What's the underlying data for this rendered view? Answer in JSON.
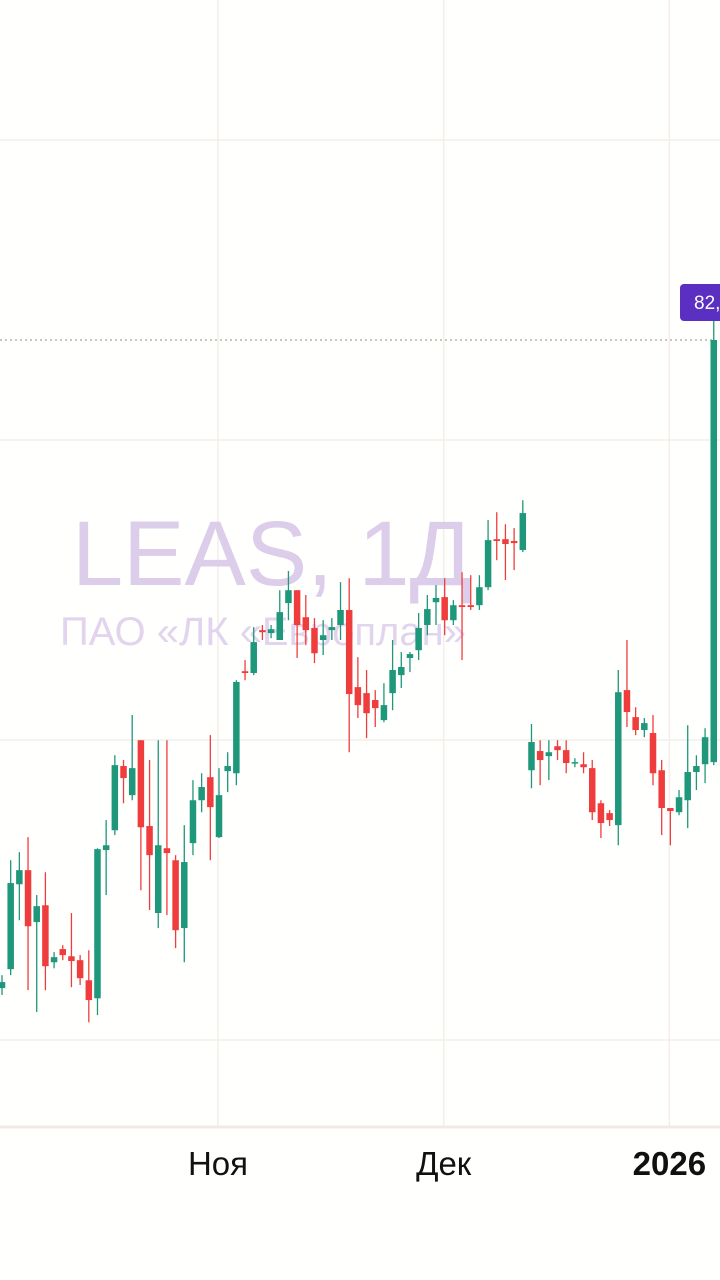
{
  "watermark": {
    "symbol": "LEAS, 1Д",
    "company": "ПАО «ЛК «Европлан»"
  },
  "colors": {
    "up": "#1f977a",
    "down": "#ef3d3d",
    "price_label": "#5a2fc2",
    "grid": "#f3eeea",
    "watermark": "#dccdea"
  },
  "chart_data": {
    "type": "candlestick",
    "title": "",
    "xlabel": "",
    "ylabel": "",
    "x_tick_labels": [
      {
        "label": "Ноя",
        "bold": false,
        "index": 25
      },
      {
        "label": "Дек",
        "bold": false,
        "index": 51
      },
      {
        "label": "2026",
        "bold": true,
        "index": 77
      }
    ],
    "ylim": [
      55.77,
      93.33
    ],
    "grid": true,
    "last_price_label": "82,",
    "last_price": 82.0,
    "ohlc": [
      [
        60.4,
        60.83,
        60.17,
        60.6
      ],
      [
        61.03,
        64.66,
        60.83,
        63.9
      ],
      [
        63.86,
        64.93,
        62.66,
        64.33
      ],
      [
        64.33,
        65.43,
        60.33,
        62.46
      ],
      [
        62.6,
        63.5,
        59.6,
        63.13
      ],
      [
        63.16,
        64.26,
        60.33,
        61.13
      ],
      [
        61.26,
        61.6,
        61.06,
        61.43
      ],
      [
        61.7,
        61.83,
        61.33,
        61.5
      ],
      [
        61.46,
        62.9,
        60.43,
        61.3
      ],
      [
        61.33,
        61.5,
        60.5,
        60.73
      ],
      [
        60.66,
        61.66,
        59.26,
        60.0
      ],
      [
        60.06,
        65.06,
        59.5,
        65.03
      ],
      [
        65.0,
        66.0,
        63.5,
        65.16
      ],
      [
        65.66,
        68.16,
        65.5,
        67.83
      ],
      [
        67.8,
        68.0,
        66.56,
        67.4
      ],
      [
        66.83,
        69.5,
        66.66,
        67.73
      ],
      [
        68.66,
        68.66,
        63.66,
        65.76
      ],
      [
        65.8,
        68.0,
        63.0,
        64.83
      ],
      [
        62.9,
        68.66,
        62.4,
        65.16
      ],
      [
        65.06,
        68.66,
        62.83,
        64.9
      ],
      [
        64.66,
        64.83,
        61.73,
        62.33
      ],
      [
        62.4,
        65.83,
        61.26,
        64.6
      ],
      [
        65.23,
        67.33,
        64.83,
        66.66
      ],
      [
        66.66,
        67.56,
        66.26,
        67.1
      ],
      [
        67.43,
        68.83,
        64.66,
        66.43
      ],
      [
        65.43,
        67.73,
        65.4,
        66.83
      ],
      [
        67.63,
        68.26,
        66.93,
        67.8
      ],
      [
        67.56,
        70.66,
        67.16,
        70.6
      ],
      [
        70.96,
        71.33,
        70.66,
        70.9
      ],
      [
        70.9,
        72.43,
        70.83,
        71.93
      ],
      [
        72.33,
        72.5,
        72.0,
        72.26
      ],
      [
        72.23,
        72.5,
        72.06,
        72.36
      ],
      [
        72.0,
        73.66,
        72.0,
        72.93
      ],
      [
        73.23,
        74.3,
        72.66,
        73.66
      ],
      [
        73.66,
        73.66,
        71.4,
        72.5
      ],
      [
        72.76,
        73.5,
        71.83,
        72.33
      ],
      [
        72.4,
        72.73,
        71.23,
        71.56
      ],
      [
        72.0,
        72.66,
        71.5,
        72.16
      ],
      [
        72.33,
        72.73,
        72.0,
        72.43
      ],
      [
        72.5,
        73.93,
        72.0,
        73.0
      ],
      [
        73.0,
        74.06,
        68.26,
        70.2
      ],
      [
        70.43,
        71.43,
        69.4,
        69.83
      ],
      [
        70.23,
        71.0,
        68.73,
        69.56
      ],
      [
        70.0,
        70.33,
        69.1,
        69.73
      ],
      [
        69.33,
        70.56,
        69.26,
        69.83
      ],
      [
        70.23,
        72.0,
        69.66,
        71.0
      ],
      [
        70.83,
        71.6,
        70.4,
        71.1
      ],
      [
        71.4,
        71.6,
        70.93,
        71.53
      ],
      [
        71.66,
        72.9,
        71.33,
        72.4
      ],
      [
        72.5,
        73.5,
        72.16,
        73.03
      ],
      [
        73.26,
        73.83,
        72.5,
        73.4
      ],
      [
        73.43,
        74.06,
        72.16,
        72.66
      ],
      [
        72.66,
        73.33,
        72.5,
        73.16
      ],
      [
        73.16,
        74.26,
        71.33,
        73.1
      ],
      [
        73.16,
        74.16,
        73.0,
        73.1
      ],
      [
        73.16,
        74.16,
        73.0,
        73.76
      ],
      [
        73.76,
        76.0,
        73.66,
        75.33
      ],
      [
        75.36,
        76.26,
        74.66,
        75.3
      ],
      [
        75.36,
        75.86,
        74.0,
        75.2
      ],
      [
        75.3,
        75.73,
        74.33,
        75.23
      ],
      [
        75.0,
        76.66,
        74.93,
        76.23
      ],
      [
        67.66,
        69.2,
        67.06,
        68.6
      ],
      [
        68.3,
        68.66,
        67.16,
        68.0
      ],
      [
        68.13,
        68.66,
        67.33,
        68.26
      ],
      [
        68.46,
        68.66,
        68.0,
        68.33
      ],
      [
        68.33,
        68.66,
        67.56,
        67.9
      ],
      [
        67.9,
        68.06,
        67.76,
        67.93
      ],
      [
        67.86,
        68.26,
        67.56,
        67.76
      ],
      [
        67.73,
        68.0,
        66.0,
        66.26
      ],
      [
        66.56,
        66.66,
        65.4,
        65.9
      ],
      [
        66.23,
        66.33,
        65.8,
        66.0
      ],
      [
        65.83,
        71.0,
        65.16,
        70.26
      ],
      [
        70.33,
        72.0,
        69.1,
        69.6
      ],
      [
        69.43,
        69.76,
        68.83,
        69.0
      ],
      [
        69.0,
        69.4,
        68.76,
        69.23
      ],
      [
        68.9,
        69.5,
        67.16,
        67.56
      ],
      [
        67.66,
        68.0,
        65.5,
        66.4
      ],
      [
        66.4,
        66.4,
        65.16,
        66.3
      ],
      [
        66.26,
        67.0,
        66.16,
        66.76
      ],
      [
        66.66,
        69.16,
        65.73,
        67.6
      ],
      [
        67.6,
        68.16,
        67.0,
        67.8
      ],
      [
        67.86,
        69.06,
        67.23,
        68.76
      ],
      [
        67.93,
        82.73,
        67.83,
        82.0
      ]
    ]
  }
}
